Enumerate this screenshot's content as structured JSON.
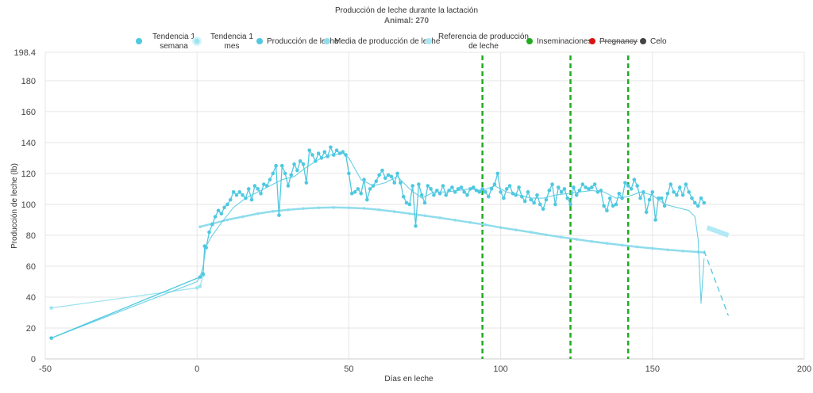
{
  "chart_data": {
    "type": "line",
    "title": "Producción de leche durante la lactación",
    "subtitle": "Animal: 270",
    "xlabel": "Días en leche",
    "ylabel": "Producción de leche (lb)",
    "xlim": [
      -50,
      200
    ],
    "ylim": [
      0,
      198.4
    ],
    "x_ticks": [
      -50,
      0,
      50,
      100,
      150,
      200
    ],
    "y_ticks": [
      0,
      20,
      40,
      60,
      80,
      100,
      120,
      140,
      160,
      180,
      198.4
    ],
    "grid": true,
    "legend_position": "top",
    "legend": [
      {
        "label": "Tendencia 1 semana",
        "color": "#4fc8e0",
        "marker": "dot"
      },
      {
        "label": "Tendencia 1 mes",
        "color": "#9fe3f0",
        "marker": "ring"
      },
      {
        "label": "Producción de leche",
        "color": "#4fc8e0",
        "marker": "dot"
      },
      {
        "label": "Media de producción de leche",
        "color": "#8fdcec",
        "marker": "dot"
      },
      {
        "label": "Referencia de producción de leche",
        "color": "#a8e8f4",
        "marker": "dot"
      },
      {
        "label": "Inseminaciones",
        "color": "#22aa22",
        "marker": "dot"
      },
      {
        "label": "Pregnancy",
        "color": "#dd1111",
        "marker": "dot",
        "hidden": true
      },
      {
        "label": "Celo",
        "color": "#444444",
        "marker": "dot"
      }
    ],
    "series": [
      {
        "name": "Producción de leche",
        "color": "#4fc8e0",
        "x": [
          -48,
          1,
          2,
          2.5,
          3,
          4,
          5,
          6,
          7,
          8,
          9,
          10,
          11,
          12,
          13,
          14,
          15,
          16,
          17,
          18,
          19,
          20,
          21,
          22,
          23,
          24,
          25,
          26,
          27,
          28,
          29,
          30,
          31,
          32,
          33,
          34,
          35,
          36,
          37,
          38,
          39,
          40,
          41,
          42,
          43,
          44,
          45,
          46,
          47,
          48,
          49,
          50,
          51,
          52,
          53,
          54,
          55,
          56,
          57,
          58,
          59,
          60,
          61,
          62,
          63,
          64,
          65,
          66,
          67,
          68,
          69,
          70,
          71,
          72,
          73,
          74,
          75,
          76,
          77,
          78,
          79,
          80,
          81,
          82,
          83,
          84,
          85,
          86,
          87,
          88,
          89,
          90,
          91,
          92,
          93,
          94,
          95,
          96,
          97,
          98,
          99,
          100,
          101,
          102,
          103,
          104,
          105,
          106,
          107,
          108,
          109,
          110,
          111,
          112,
          113,
          114,
          115,
          116,
          117,
          118,
          119,
          120,
          121,
          122,
          123,
          124,
          125,
          126,
          127,
          128,
          129,
          130,
          131,
          132,
          133,
          134,
          135,
          136,
          137,
          138,
          139,
          140,
          141,
          142,
          143,
          144,
          145,
          146,
          147,
          148,
          149,
          150,
          151,
          152,
          153,
          154,
          155,
          156,
          157,
          158,
          159,
          160,
          161,
          162,
          163,
          164,
          165,
          166,
          167
        ],
        "y": [
          13.5,
          53,
          55,
          73,
          72,
          82,
          87,
          92,
          96,
          94,
          98,
          100,
          103,
          108,
          106,
          108,
          106,
          104,
          110,
          103,
          112,
          110,
          107,
          113,
          112,
          116,
          120,
          125,
          93,
          125,
          120,
          112,
          119,
          126,
          122,
          128,
          126,
          114,
          135,
          132,
          128,
          133,
          130,
          134,
          131,
          137,
          132,
          135,
          133,
          134,
          132,
          120,
          107,
          108,
          110,
          107,
          116,
          103,
          110,
          112,
          115,
          119,
          122,
          117,
          119,
          118,
          114,
          120,
          114,
          105,
          101,
          100,
          112,
          86,
          113,
          106,
          101,
          112,
          110,
          106,
          109,
          107,
          112,
          106,
          109,
          111,
          108,
          110,
          111,
          108,
          106,
          110,
          111,
          109,
          108,
          110,
          108,
          105,
          110,
          113,
          120,
          108,
          104,
          110,
          112,
          107,
          106,
          111,
          105,
          102,
          108,
          103,
          101,
          106,
          100,
          97,
          103,
          109,
          113,
          100,
          111,
          108,
          110,
          104,
          100,
          111,
          106,
          109,
          113,
          111,
          110,
          111,
          113,
          108,
          109,
          99,
          96,
          104,
          99,
          100,
          107,
          104,
          114,
          112,
          110,
          116,
          112,
          104,
          108,
          95,
          103,
          108,
          90,
          104,
          104,
          99,
          107,
          113,
          108,
          106,
          111,
          106,
          113,
          108,
          104,
          101,
          99,
          104,
          101
        ],
        "markers": true
      },
      {
        "name": "Tendencia 1 semana",
        "color": "#4fc8e0",
        "x": [
          -48,
          0,
          1,
          2,
          3,
          5,
          8,
          12,
          16,
          20,
          24,
          28,
          32,
          36,
          40,
          44,
          48,
          50,
          54,
          58,
          62,
          66,
          70,
          74,
          78,
          82,
          86,
          90,
          94,
          98,
          102,
          106,
          110,
          114,
          118,
          122,
          126,
          130,
          134,
          138,
          142,
          146,
          150,
          154,
          158,
          162,
          164,
          165,
          166,
          167
        ],
        "y": [
          13.5,
          50,
          53,
          60,
          73,
          80,
          88,
          98,
          104,
          108,
          112,
          116,
          118,
          124,
          129,
          132,
          133,
          130,
          116,
          112,
          114,
          118,
          110,
          104,
          108,
          108,
          109,
          110,
          109,
          112,
          108,
          106,
          104,
          104,
          106,
          107,
          108,
          109,
          108,
          104,
          105,
          108,
          106,
          100,
          98,
          96,
          92,
          78,
          36,
          65
        ],
        "markers": false
      },
      {
        "name": "Tendencia 1 mes",
        "color": "#9fe3f0",
        "x": [
          -48,
          0,
          1,
          2
        ],
        "y": [
          33,
          46,
          47,
          54
        ],
        "markers": true
      },
      {
        "name": "Media de producción de leche",
        "color": "#8fdcec",
        "x": [
          1,
          5,
          10,
          15,
          20,
          25,
          30,
          35,
          40,
          45,
          50,
          55,
          60,
          65,
          70,
          75,
          80,
          85,
          90,
          95,
          100,
          105,
          110,
          115,
          120,
          125,
          130,
          135,
          140,
          145,
          150,
          155,
          160,
          165,
          167
        ],
        "y": [
          85.5,
          87.5,
          90,
          92,
          94,
          95.5,
          96.5,
          97.3,
          97.8,
          98,
          97.8,
          97.4,
          96.5,
          95.3,
          94,
          92.7,
          91.3,
          89.8,
          88.3,
          86.8,
          85,
          83.5,
          82,
          80.3,
          78.8,
          77.4,
          76,
          74.8,
          73.6,
          72.5,
          71.5,
          70.6,
          69.8,
          69.2,
          68.8
        ],
        "markers": true
      },
      {
        "name": "Referencia de producción de leche",
        "color": "#a8e8f4",
        "x": [
          168,
          175
        ],
        "y": [
          85,
          80
        ],
        "markers": false
      },
      {
        "name": "Proyección",
        "color": "#4fc8e0",
        "x": [
          167,
          175
        ],
        "y": [
          70,
          28
        ],
        "markers": false,
        "dashed": true
      }
    ],
    "inseminations_x": [
      94,
      123,
      142
    ]
  }
}
